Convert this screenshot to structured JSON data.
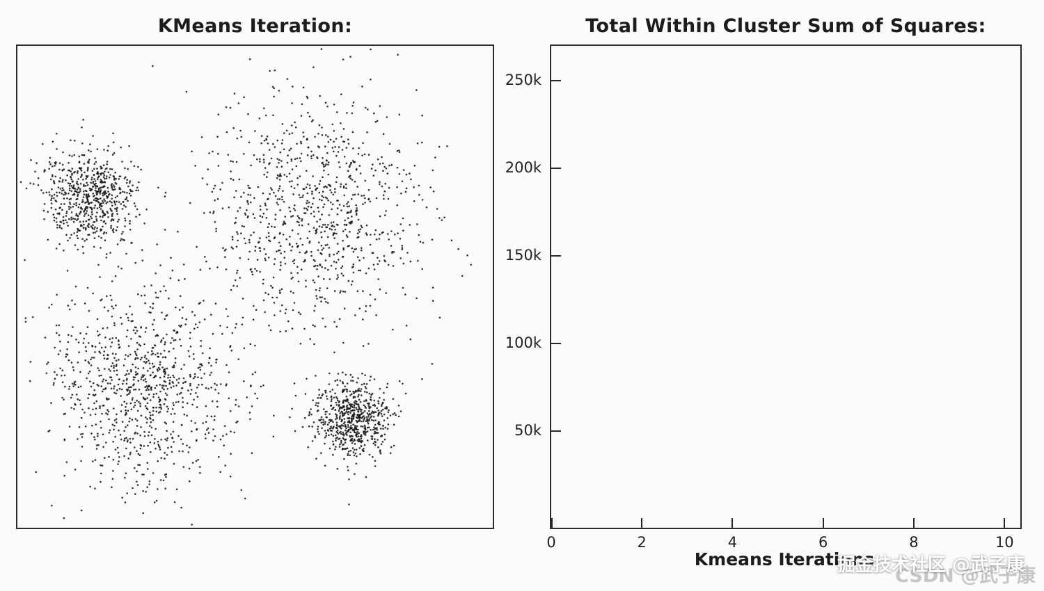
{
  "chart_data": [
    {
      "type": "scatter",
      "title": "KMeans Iteration:",
      "xlabel": "",
      "ylabel": "",
      "grid": false,
      "ticks_visible": false,
      "point_color": "#141414",
      "point_radius": 1.3,
      "point_opacity": 0.88,
      "coord_note": "cx,cy are fractions of plot area from top-left; sx,sy are gaussian std devs; n is point count",
      "clusters": [
        {
          "name": "cluster-top-left-dense",
          "cx": 0.155,
          "cy": 0.315,
          "sx": 0.048,
          "sy": 0.05,
          "n": 650,
          "seed": 101
        },
        {
          "name": "cluster-top-right-diffuse",
          "cx": 0.625,
          "cy": 0.345,
          "sx": 0.115,
          "sy": 0.115,
          "n": 950,
          "seed": 202
        },
        {
          "name": "cluster-bottom-left-diffuse",
          "cx": 0.265,
          "cy": 0.705,
          "sx": 0.1,
          "sy": 0.105,
          "n": 950,
          "seed": 303
        },
        {
          "name": "cluster-bottom-right-dense",
          "cx": 0.705,
          "cy": 0.775,
          "sx": 0.042,
          "sy": 0.042,
          "n": 650,
          "seed": 404
        }
      ]
    },
    {
      "type": "line",
      "title": "Total Within Cluster Sum of Squares:",
      "xlabel": "Kmeans Iterations",
      "ylabel": "",
      "grid": false,
      "series": [],
      "series_note": "plot area is empty - no data drawn yet",
      "xlim": [
        0,
        10.35
      ],
      "ylim": [
        -5000,
        270000
      ],
      "xticks": [
        {
          "value": 0,
          "label": "0"
        },
        {
          "value": 2,
          "label": "2"
        },
        {
          "value": 4,
          "label": "4"
        },
        {
          "value": 6,
          "label": "6"
        },
        {
          "value": 8,
          "label": "8"
        },
        {
          "value": 10,
          "label": "10"
        }
      ],
      "yticks": [
        {
          "value": 250000,
          "label": "250k"
        },
        {
          "value": 200000,
          "label": "200k"
        },
        {
          "value": 150000,
          "label": "150k"
        },
        {
          "value": 100000,
          "label": "100k"
        },
        {
          "value": 50000,
          "label": "50k"
        }
      ]
    }
  ],
  "watermark": {
    "primary": "掘金技术社区 @武子康",
    "secondary": "CSDN @武子康"
  },
  "colors": {
    "background": "#fbfbfa",
    "frame": "#2a2a2a",
    "text": "#1c1c1c",
    "watermark_gray": "#c6c6c6",
    "watermark_white": "#ffffff"
  }
}
